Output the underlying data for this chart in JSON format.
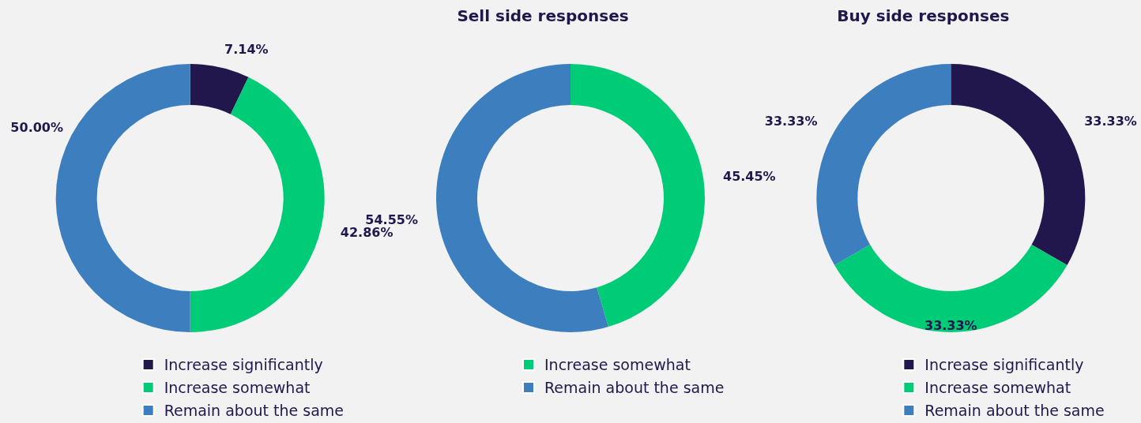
{
  "chart_data": [
    {
      "type": "donut",
      "categories": [
        "Increase significantly",
        "Increase somewhat",
        "Remain about the same"
      ],
      "values": [
        7.14,
        42.86,
        50.0
      ],
      "value_labels": [
        "7.14%",
        "42.86%",
        "50.00%"
      ],
      "colors": [
        "#21174d",
        "#00cc77",
        "#3d7ebf"
      ],
      "legend": "bottom"
    },
    {
      "type": "donut",
      "title": "Sell side responses",
      "categories": [
        "Increase somewhat",
        "Remain about the same"
      ],
      "values": [
        45.45,
        54.55
      ],
      "value_labels": [
        "45.45%",
        "54.55%"
      ],
      "colors": [
        "#00cc77",
        "#3d7ebf"
      ],
      "legend": "bottom"
    },
    {
      "type": "donut",
      "title": "Buy side responses",
      "categories": [
        "Increase significantly",
        "Increase somewhat",
        "Remain about the same"
      ],
      "values": [
        33.33,
        33.33,
        33.33
      ],
      "value_labels": [
        "33.33%",
        "33.33%",
        "33.33%"
      ],
      "colors": [
        "#21174d",
        "#00cc77",
        "#3d7ebf"
      ],
      "legend": "bottom"
    }
  ]
}
